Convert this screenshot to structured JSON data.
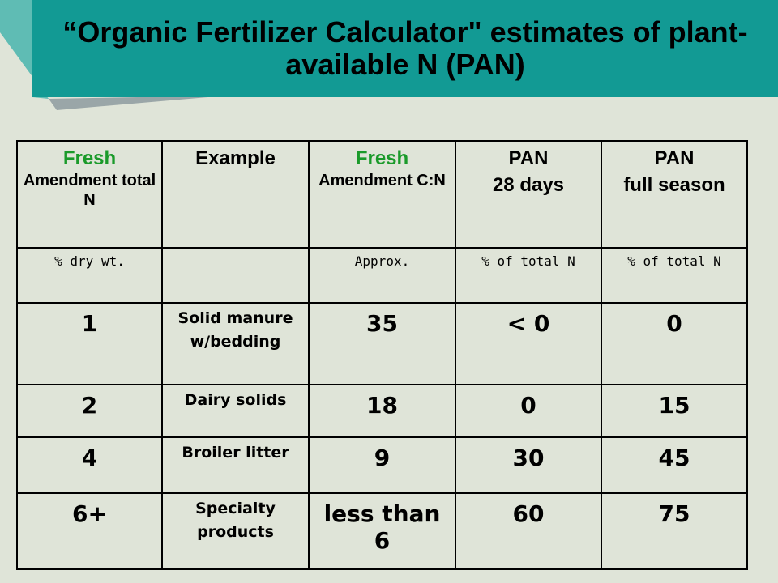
{
  "title": "“Organic Fertilizer Calculator\" estimates of plant-available N (PAN)",
  "table": {
    "header": [
      [
        "Fresh",
        "Amendment total N"
      ],
      [
        "Example"
      ],
      [
        "Fresh",
        "Amendment C:N"
      ],
      [
        "PAN",
        "28 days"
      ],
      [
        "PAN",
        "full season"
      ]
    ],
    "units": [
      "% dry wt.",
      null,
      "Approx.",
      "% of total N",
      "% of total N"
    ],
    "rows": [
      [
        "1",
        "Solid manure w/bedding",
        "35",
        "< 0",
        "0"
      ],
      [
        "2",
        "Dairy solids",
        "18",
        "0",
        "15"
      ],
      [
        "4",
        "Broiler litter",
        "9",
        "30",
        "45"
      ],
      [
        "6+",
        "Specialty products",
        "less than 6",
        "60",
        "75"
      ]
    ]
  }
}
